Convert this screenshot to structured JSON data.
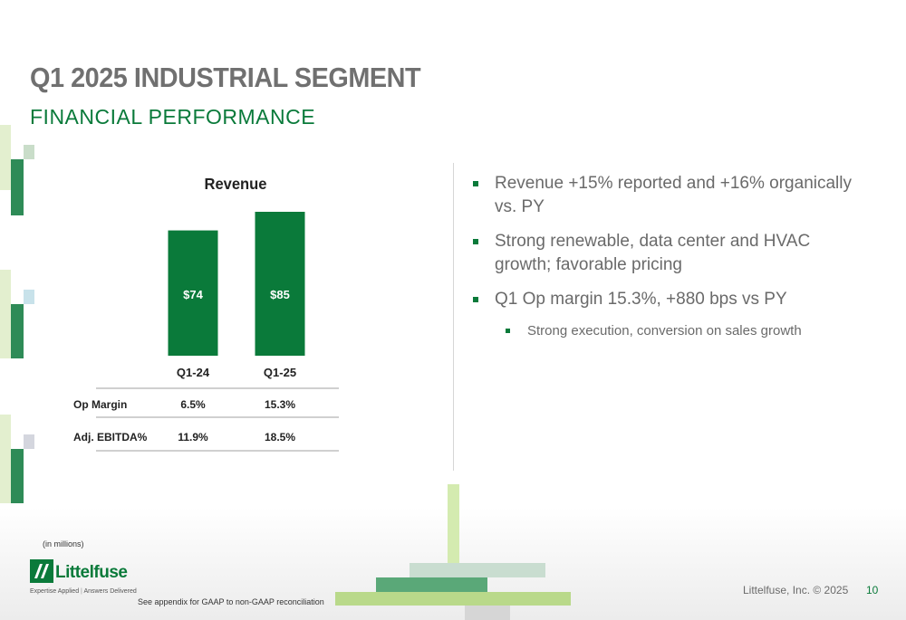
{
  "header": {
    "title": "Q1 2025 INDUSTRIAL SEGMENT",
    "subtitle": "FINANCIAL PERFORMANCE"
  },
  "chart_data": {
    "type": "bar",
    "title": "Revenue",
    "categories": [
      "Q1-24",
      "Q1-25"
    ],
    "values": [
      74,
      85
    ],
    "value_labels": [
      "$74",
      "$85"
    ],
    "ylim": [
      0,
      85
    ],
    "grid": false,
    "bar_color": "#0a7a3a"
  },
  "metrics_table": {
    "rows": [
      {
        "label": "Op Margin",
        "values": [
          "6.5%",
          "15.3%"
        ]
      },
      {
        "label": "Adj. EBITDA%",
        "values": [
          "11.9%",
          "18.5%"
        ]
      }
    ]
  },
  "bullets": [
    {
      "text": "Revenue +15% reported and +16% organically vs. PY",
      "level": 1
    },
    {
      "text": "Strong renewable, data center and HVAC growth; favorable pricing",
      "level": 1
    },
    {
      "text": "Q1 Op margin 15.3%, +880 bps vs PY",
      "level": 1
    },
    {
      "text": "Strong execution, conversion on sales growth",
      "level": 2
    }
  ],
  "footer": {
    "units_note": "(in millions)",
    "logo_text": "Littelfuse",
    "tagline_left": "Expertise Applied",
    "tagline_right": "Answers Delivered",
    "appendix_note": "See appendix for GAAP to non-GAAP reconciliation",
    "copyright": "Littelfuse, Inc. © 2025",
    "page_number": "10"
  },
  "colors": {
    "brand_green": "#0a7a3a",
    "title_gray": "#707070"
  }
}
